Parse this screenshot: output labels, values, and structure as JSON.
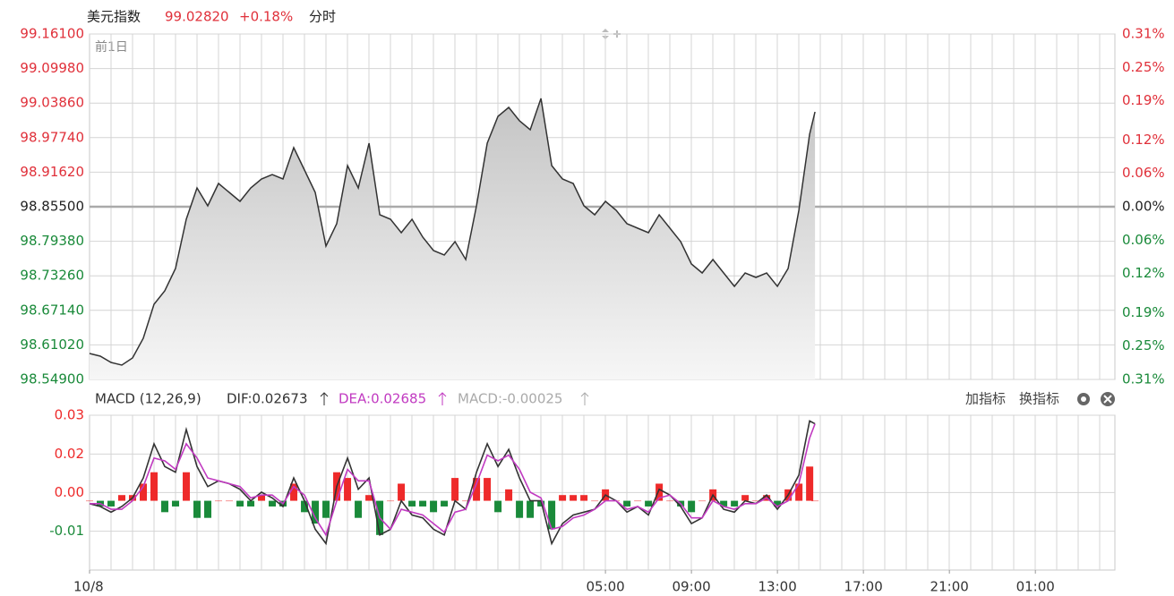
{
  "header": {
    "name": "美元指数",
    "price": "99.02820",
    "change": "+0.18%",
    "mode": "分时"
  },
  "toolbar": [
    "加指标",
    "换指标"
  ],
  "chart_data": [
    {
      "type": "area",
      "annotation": "前1日",
      "color": "#333333",
      "up_color": "#e0303a",
      "down_color": "#1a8a3a",
      "reference": 98.855,
      "grid": true,
      "x": [
        0,
        0.5,
        1,
        1.5,
        2,
        2.5,
        3,
        3.5,
        4,
        4.5,
        5,
        5.5,
        6,
        6.5,
        7,
        7.5,
        8,
        8.5,
        9,
        9.5,
        10,
        10.5,
        11,
        11.5,
        12,
        12.5,
        13,
        13.5,
        14,
        14.5,
        15,
        15.5,
        16,
        16.5,
        17,
        17.5,
        18,
        18.5,
        19,
        19.5,
        20,
        20.5,
        21,
        21.5,
        22,
        22.5,
        23,
        23.5,
        24,
        24.5,
        25,
        25.5,
        26,
        26.5,
        27,
        27.5,
        28,
        28.5,
        29,
        29.5,
        30,
        30.5,
        31,
        31.5,
        32,
        32.5,
        33,
        33.5,
        33.75
      ],
      "values": [
        98.595,
        98.5902,
        98.5791,
        98.5744,
        98.587,
        98.6219,
        98.6822,
        98.706,
        98.7456,
        98.8328,
        98.8883,
        98.8566,
        98.8962,
        98.8804,
        98.8645,
        98.8883,
        98.9041,
        98.9121,
        98.9041,
        98.9596,
        98.92,
        98.8804,
        98.7852,
        98.8249,
        98.9279,
        98.8883,
        98.9676,
        98.8407,
        98.8328,
        98.809,
        98.8328,
        98.8011,
        98.7773,
        98.7694,
        98.7932,
        98.7615,
        98.8566,
        98.9676,
        99.0151,
        99.031,
        99.0072,
        98.9914,
        99.0468,
        98.9279,
        98.9041,
        98.8962,
        98.8566,
        98.8407,
        98.8645,
        98.8487,
        98.8249,
        98.8169,
        98.809,
        98.8407,
        98.8169,
        98.7932,
        98.7535,
        98.7377,
        98.7615,
        98.7377,
        98.7139,
        98.7377,
        98.7297,
        98.7377,
        98.7139,
        98.7456,
        98.8487,
        98.9834,
        99.0231
      ],
      "xlim": [
        0,
        47.7
      ],
      "ylim": [
        98.549,
        99.161
      ],
      "yticks": [
        {
          "value": 99.161,
          "label": "99.16100"
        },
        {
          "value": 99.0998,
          "label": "99.09980"
        },
        {
          "value": 99.0386,
          "label": "99.03860"
        },
        {
          "value": 98.9774,
          "label": "98.97740"
        },
        {
          "value": 98.9162,
          "label": "98.91620"
        },
        {
          "value": 98.855,
          "label": "98.85500"
        },
        {
          "value": 98.7938,
          "label": "98.79380"
        },
        {
          "value": 98.7326,
          "label": "98.73260"
        },
        {
          "value": 98.6714,
          "label": "98.67140"
        },
        {
          "value": 98.6102,
          "label": "98.61020"
        },
        {
          "value": 98.549,
          "label": "98.54900"
        }
      ],
      "y2lim": [
        -0.31,
        0.31
      ],
      "y2ticks": [
        {
          "value": 0.31,
          "label": "0.31%"
        },
        {
          "value": 0.25,
          "label": "0.25%"
        },
        {
          "value": 0.19,
          "label": "0.19%"
        },
        {
          "value": 0.12,
          "label": "0.12%"
        },
        {
          "value": 0.06,
          "label": "0.06%"
        },
        {
          "value": 0,
          "label": "0.00%"
        },
        {
          "value": -0.06,
          "label": "0.06%"
        },
        {
          "value": -0.12,
          "label": "0.12%"
        },
        {
          "value": -0.19,
          "label": "0.19%"
        },
        {
          "value": -0.25,
          "label": "0.25%"
        },
        {
          "value": -0.31,
          "label": "0.31%"
        }
      ]
    },
    {
      "type": "macd",
      "title": "MACD (12,26,9)",
      "up_color": "#ee2a2a",
      "down_color": "#1a8a3a",
      "x": [
        0,
        0.5,
        1,
        1.5,
        2,
        2.5,
        3,
        3.5,
        4,
        4.5,
        5,
        5.5,
        6,
        6.5,
        7,
        7.5,
        8,
        8.5,
        9,
        9.5,
        10,
        10.5,
        11,
        11.5,
        12,
        12.5,
        13,
        13.5,
        14,
        14.5,
        15,
        15.5,
        16,
        16.5,
        17,
        17.5,
        18,
        18.5,
        19,
        19.5,
        20,
        20.5,
        21,
        21.5,
        22,
        22.5,
        23,
        23.5,
        24,
        24.5,
        25,
        25.5,
        26,
        26.5,
        27,
        27.5,
        28,
        28.5,
        29,
        29.5,
        30,
        30.5,
        31,
        31.5,
        32,
        32.5,
        33,
        33.5,
        33.75
      ],
      "series": [
        {
          "name": "DIF:0.02673",
          "color": "#333333",
          "values": [
            -0.001,
            -0.002,
            -0.004,
            -0.002,
            0.001,
            0.008,
            0.02,
            0.012,
            0.01,
            0.025,
            0.012,
            0.005,
            0.007,
            0.006,
            0.004,
            0.0,
            0.003,
            0.001,
            -0.002,
            0.008,
            0.0,
            -0.01,
            -0.015,
            0.005,
            0.015,
            0.004,
            0.008,
            -0.012,
            -0.01,
            0.0,
            -0.005,
            -0.006,
            -0.01,
            -0.012,
            0.0,
            -0.003,
            0.01,
            0.02,
            0.012,
            0.018,
            0.008,
            0.0,
            0.0,
            -0.015,
            -0.008,
            -0.005,
            -0.004,
            -0.003,
            0.002,
            0.0,
            -0.004,
            -0.002,
            -0.005,
            0.004,
            0.002,
            -0.002,
            -0.008,
            -0.006,
            0.002,
            -0.003,
            -0.004,
            0.0,
            -0.001,
            0.002,
            -0.003,
            0.002,
            0.009,
            0.028,
            0.027
          ]
        },
        {
          "name": "DEA:0.02685",
          "color": "#c13ac1",
          "values": [
            -0.001,
            -0.001,
            -0.003,
            -0.003,
            0.0,
            0.005,
            0.015,
            0.014,
            0.011,
            0.02,
            0.015,
            0.008,
            0.007,
            0.006,
            0.005,
            0.001,
            0.002,
            0.002,
            -0.001,
            0.005,
            0.002,
            -0.006,
            -0.012,
            0.0,
            0.011,
            0.007,
            0.007,
            -0.006,
            -0.01,
            -0.003,
            -0.004,
            -0.005,
            -0.008,
            -0.011,
            -0.004,
            -0.003,
            0.006,
            0.016,
            0.014,
            0.016,
            0.011,
            0.003,
            0.001,
            -0.01,
            -0.009,
            -0.006,
            -0.005,
            -0.003,
            0.0,
            0.0,
            -0.003,
            -0.002,
            -0.004,
            0.001,
            0.002,
            -0.001,
            -0.006,
            -0.006,
            0.0,
            -0.002,
            -0.003,
            -0.001,
            -0.001,
            0.001,
            -0.002,
            0.0,
            0.006,
            0.022,
            0.027
          ]
        },
        {
          "name": "MACD:-0.00025",
          "color": "#aaaaaa",
          "type": "bar",
          "values": [
            0.0,
            -0.002,
            -0.002,
            0.002,
            0.002,
            0.006,
            0.01,
            -0.004,
            -0.002,
            0.01,
            -0.006,
            -0.006,
            0.0,
            0.0,
            -0.002,
            -0.002,
            0.002,
            -0.002,
            -0.002,
            0.006,
            -0.004,
            -0.008,
            -0.006,
            0.01,
            0.008,
            -0.006,
            0.002,
            -0.012,
            0.0,
            0.006,
            -0.002,
            -0.002,
            -0.004,
            -0.002,
            0.008,
            0.0,
            0.008,
            0.008,
            -0.004,
            0.004,
            -0.006,
            -0.006,
            -0.002,
            -0.01,
            0.002,
            0.002,
            0.002,
            0.0,
            0.004,
            0.0,
            -0.002,
            0.0,
            -0.002,
            0.006,
            0.0,
            -0.002,
            -0.004,
            0.0,
            0.004,
            -0.002,
            -0.002,
            0.002,
            0.0,
            0.002,
            -0.002,
            0.004,
            0.006,
            0.012,
            0.0
          ]
        }
      ],
      "xlim": [
        0,
        47.7
      ],
      "xticks": [
        {
          "value": 0,
          "label": "10/8"
        },
        {
          "value": 24,
          "label": "05:00"
        },
        {
          "value": 28,
          "label": "09:00"
        },
        {
          "value": 32,
          "label": "13:00"
        },
        {
          "value": 36,
          "label": "17:00"
        },
        {
          "value": 40,
          "label": "21:00"
        },
        {
          "value": 44,
          "label": "01:00"
        }
      ],
      "ylim": [
        -0.0243,
        0.03
      ],
      "yticks": [
        0.03,
        {
          "value": 0.0164,
          "label": "0.02"
        },
        {
          "value": 0.0029,
          "label": "0.00"
        },
        {
          "value": -0.0107,
          "label": "-0.01"
        }
      ]
    }
  ]
}
